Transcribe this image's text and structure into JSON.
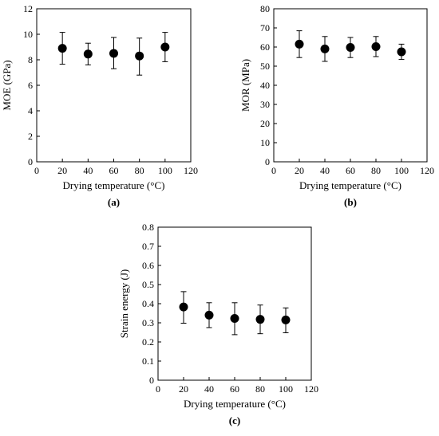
{
  "chart_data": [
    {
      "type": "scatter",
      "panel_label": "(a)",
      "xlabel": "Drying temperature (°C)",
      "ylabel": "MOE (GPa)",
      "xlim": [
        0,
        120
      ],
      "ylim": [
        0,
        12
      ],
      "xticks": [
        "0",
        "20",
        "40",
        "60",
        "80",
        "100",
        "120"
      ],
      "yticks": [
        "0",
        "2",
        "4",
        "6",
        "8",
        "10",
        "12"
      ],
      "grid": false,
      "series": [
        {
          "x": [
            20,
            40,
            60,
            80,
            100
          ],
          "y": [
            8.9,
            8.45,
            8.5,
            8.3,
            9.0
          ],
          "err_low": [
            7.65,
            7.6,
            7.3,
            6.8,
            7.85
          ],
          "err_high": [
            10.15,
            9.3,
            9.75,
            9.7,
            10.15
          ]
        }
      ]
    },
    {
      "type": "scatter",
      "panel_label": "(b)",
      "xlabel": "Drying temperature (°C)",
      "ylabel": "MOR (MPa)",
      "xlim": [
        0,
        120
      ],
      "ylim": [
        0,
        80
      ],
      "xticks": [
        "0",
        "20",
        "40",
        "60",
        "80",
        "100",
        "120"
      ],
      "yticks": [
        "0",
        "10",
        "20",
        "30",
        "40",
        "50",
        "60",
        "70",
        "80"
      ],
      "grid": false,
      "series": [
        {
          "x": [
            20,
            40,
            60,
            80,
            100
          ],
          "y": [
            61.5,
            59.0,
            59.8,
            60.2,
            57.5
          ],
          "err_low": [
            54.5,
            52.5,
            54.5,
            55.0,
            53.5
          ],
          "err_high": [
            68.5,
            65.5,
            65.0,
            65.5,
            61.5
          ]
        }
      ]
    },
    {
      "type": "scatter",
      "panel_label": "(c)",
      "xlabel": "Drying temperature (°C)",
      "ylabel": "Strain energy (J)",
      "xlim": [
        0,
        120
      ],
      "ylim": [
        0,
        0.8
      ],
      "xticks": [
        "0",
        "20",
        "40",
        "60",
        "80",
        "100",
        "120"
      ],
      "yticks": [
        "0",
        "0.1",
        "0.2",
        "0.3",
        "0.4",
        "0.5",
        "0.6",
        "0.7",
        "0.8"
      ],
      "grid": false,
      "series": [
        {
          "x": [
            20,
            40,
            60,
            80,
            100
          ],
          "y": [
            0.383,
            0.34,
            0.323,
            0.318,
            0.315
          ],
          "err_low": [
            0.298,
            0.275,
            0.238,
            0.243,
            0.248
          ],
          "err_high": [
            0.463,
            0.405,
            0.405,
            0.393,
            0.378
          ]
        }
      ]
    }
  ]
}
